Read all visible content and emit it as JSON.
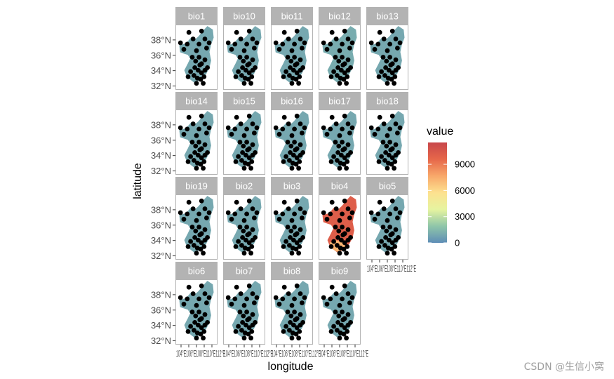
{
  "chart_data": {
    "type": "faceted-map",
    "xlabel": "longitude",
    "ylabel": "latitude",
    "ylim": [
      31.5,
      40
    ],
    "y_ticks": [
      "38°N",
      "36°N",
      "34°N",
      "32°N"
    ],
    "y_tick_values": [
      38,
      36,
      34,
      32
    ],
    "x_tick_text": "104°E106°E108°E110°E112°E",
    "facets": [
      {
        "name": "bio1",
        "level": 0.08
      },
      {
        "name": "bio10",
        "level": 0.08
      },
      {
        "name": "bio11",
        "level": 0.08
      },
      {
        "name": "bio12",
        "level": 0.09
      },
      {
        "name": "bio13",
        "level": 0.08
      },
      {
        "name": "bio14",
        "level": 0.08
      },
      {
        "name": "bio15",
        "level": 0.08
      },
      {
        "name": "bio16",
        "level": 0.08
      },
      {
        "name": "bio17",
        "level": 0.08
      },
      {
        "name": "bio18",
        "level": 0.08
      },
      {
        "name": "bio19",
        "level": 0.08
      },
      {
        "name": "bio2",
        "level": 0.08
      },
      {
        "name": "bio3",
        "level": 0.08
      },
      {
        "name": "bio4",
        "level": 0.88
      },
      {
        "name": "bio5",
        "level": 0.08
      },
      {
        "name": "bio6",
        "level": 0.08
      },
      {
        "name": "bio7",
        "level": 0.08
      },
      {
        "name": "bio8",
        "level": 0.08
      },
      {
        "name": "bio9",
        "level": 0.08
      }
    ],
    "legend": {
      "title": "value",
      "range": [
        0,
        11500
      ],
      "labels": [
        9000,
        6000,
        3000,
        0
      ],
      "colors": [
        "#5e8db6",
        "#8fc6a9",
        "#e6f4a0",
        "#fde18f",
        "#f8a86a",
        "#e6674a",
        "#c8474b"
      ]
    }
  },
  "watermark": "CSDN @生信小窝"
}
